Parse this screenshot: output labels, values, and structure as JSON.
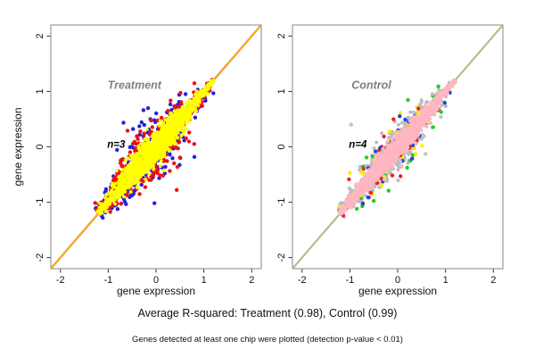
{
  "captions": {
    "r_squared": "Average R-squared: Treatment (0.98), Control (0.99)",
    "note": "Genes detected at least one chip were plotted (detection p-value < 0.01)"
  },
  "chart_data": [
    {
      "type": "scatter",
      "panel": "treatment",
      "title": "Treatment",
      "title_color": "#808080",
      "title_pos": [
        -0.45,
        1.05
      ],
      "annotation": "n=3",
      "annotation_color": "#000000",
      "annotation_pos": [
        -1.02,
        -0.02
      ],
      "xlabel": "gene expression",
      "ylabel": "gene expression",
      "xlim": [
        -2.2,
        2.2
      ],
      "ylim": [
        -2.2,
        2.2
      ],
      "xticks": [
        -2,
        -1,
        0,
        1,
        2
      ],
      "yticks": [
        -2,
        -1,
        0,
        1,
        2
      ],
      "box_color": "#999999",
      "tick_color": "#333333",
      "r_squared": 0.98,
      "identity_line": [
        {
          "color": "#dd4400",
          "width": 2.0
        },
        {
          "color": "#ffe000",
          "width": 1.0
        }
      ],
      "cloud": {
        "along_line": "y=x",
        "extent": [
          -1.2,
          1.2
        ],
        "center": -0.08
      },
      "series": [
        {
          "name": "blue-points",
          "color": "#2222dd",
          "n": 330,
          "spread": 0.34,
          "radius": 2.2,
          "seed": 11
        },
        {
          "name": "red-points",
          "color": "#ee1111",
          "n": 400,
          "spread": 0.29,
          "radius": 2.2,
          "seed": 22
        },
        {
          "name": "yellow-cloud",
          "color": "#ffff00",
          "n": 1500,
          "spread": 0.15,
          "radius": 1.9,
          "seed": 33
        }
      ]
    },
    {
      "type": "scatter",
      "panel": "control",
      "title": "Control",
      "title_color": "#808080",
      "title_pos": [
        -0.55,
        1.05
      ],
      "annotation": "n=4",
      "annotation_color": "#000000",
      "annotation_pos": [
        -1.02,
        -0.02
      ],
      "xlabel": "gene expression",
      "ylabel": "gene expression",
      "xlim": [
        -2.2,
        2.2
      ],
      "ylim": [
        -2.2,
        2.2
      ],
      "xticks": [
        -2,
        -1,
        0,
        1,
        2
      ],
      "yticks": [
        -2,
        -1,
        0,
        1,
        2
      ],
      "box_color": "#999999",
      "tick_color": "#333333",
      "r_squared": 0.99,
      "identity_line": [
        {
          "color": "#7fae5f",
          "width": 2.0
        },
        {
          "color": "#cfc0a0",
          "width": 1.1
        }
      ],
      "cloud": {
        "along_line": "y=x",
        "extent": [
          -1.2,
          1.2
        ],
        "center": -0.08
      },
      "series": [
        {
          "name": "gray-cloud",
          "color": "#bcbcbc",
          "n": 750,
          "spread": 0.2,
          "radius": 2.0,
          "seed": 44
        },
        {
          "name": "green-points",
          "color": "#22cc22",
          "n": 80,
          "spread": 0.25,
          "radius": 2.2,
          "seed": 55
        },
        {
          "name": "yellow-points",
          "color": "#ffee00",
          "n": 80,
          "spread": 0.25,
          "radius": 2.2,
          "seed": 66
        },
        {
          "name": "red-points",
          "color": "#ee2222",
          "n": 50,
          "spread": 0.26,
          "radius": 2.2,
          "seed": 77
        },
        {
          "name": "blue-points",
          "color": "#2244dd",
          "n": 35,
          "spread": 0.26,
          "radius": 2.2,
          "seed": 88
        },
        {
          "name": "gray-points",
          "color": "#c2c2c2",
          "n": 45,
          "spread": 0.27,
          "radius": 2.2,
          "seed": 99
        },
        {
          "name": "pink-cloud",
          "color": "#ffb6c1",
          "n": 1500,
          "spread": 0.105,
          "radius": 1.9,
          "seed": 101
        }
      ]
    }
  ]
}
